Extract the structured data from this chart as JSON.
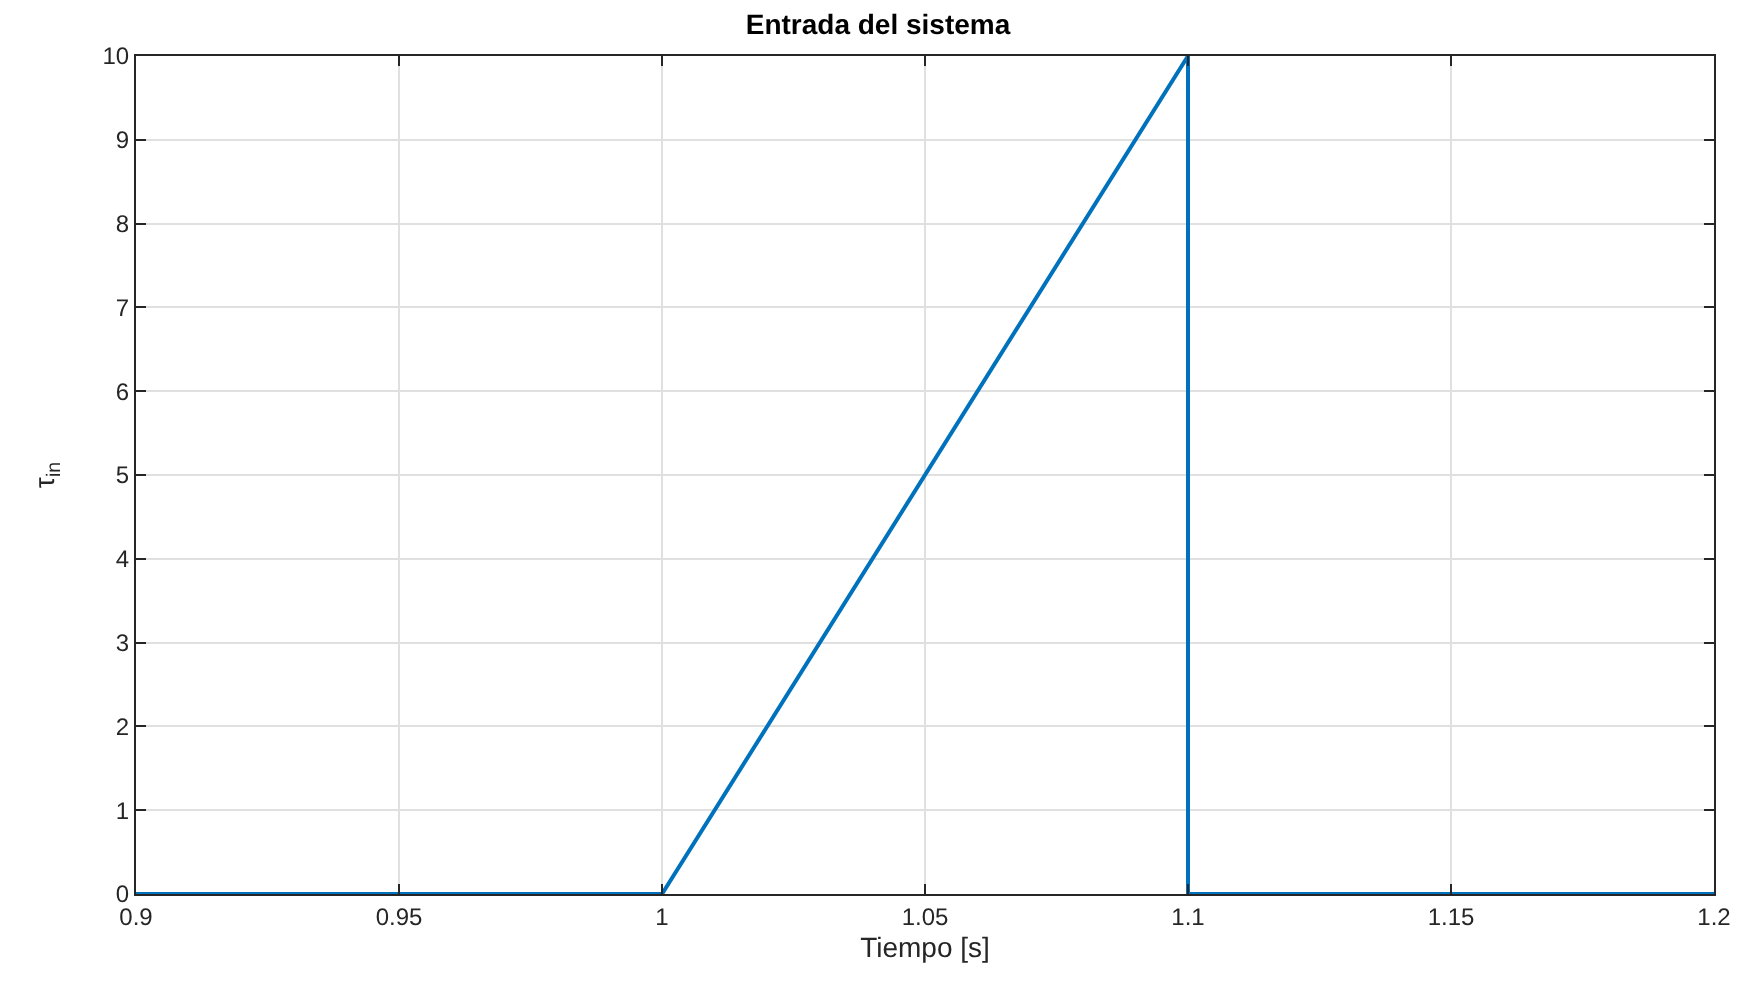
{
  "chart_data": {
    "type": "line",
    "title": "Entrada del sistema",
    "xlabel": "Tiempo [s]",
    "ylabel": "τ$_{in}$",
    "x": [
      0.9,
      1.0,
      1.1,
      1.1,
      1.2
    ],
    "series": [
      {
        "color": "#0072bd",
        "values": [
          0,
          0,
          10,
          0,
          0
        ]
      }
    ],
    "xlim": [
      0.9,
      1.2
    ],
    "xticks": [
      0.9,
      0.95,
      1,
      1.05,
      1.1,
      1.15,
      1.2
    ],
    "ylim": [
      0,
      10
    ],
    "yticks": [
      0,
      1,
      2,
      3,
      4,
      5,
      6,
      7,
      8,
      9,
      10
    ],
    "grid": true,
    "line_style": "solid",
    "marker": "none"
  }
}
